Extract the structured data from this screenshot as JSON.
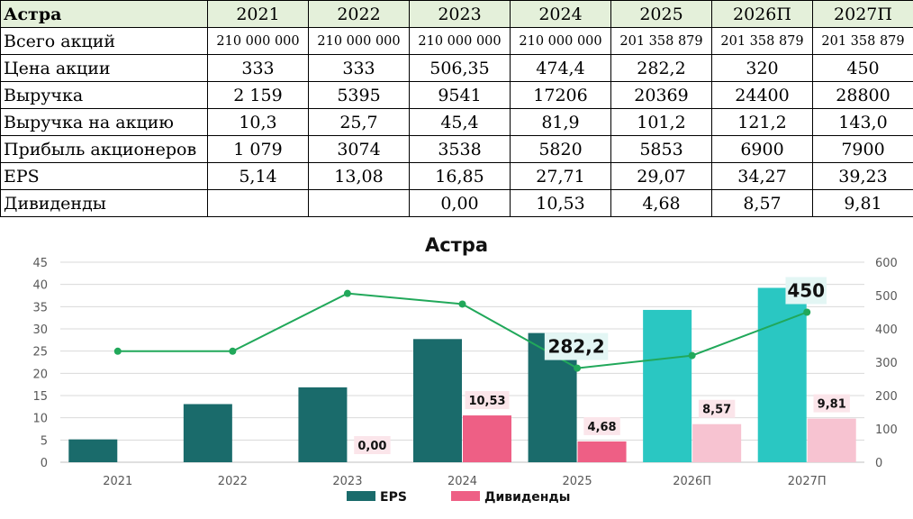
{
  "table": {
    "corner": "Астра",
    "years": [
      "2021",
      "2022",
      "2023",
      "2024",
      "2025",
      "2026П",
      "2027П"
    ],
    "rows": [
      {
        "label": "Всего акций",
        "small": true,
        "values": [
          "210 000 000",
          "210 000 000",
          "210 000 000",
          "210 000 000",
          "201 358 879",
          "201 358 879",
          "201 358 879"
        ]
      },
      {
        "label": "Цена акции",
        "values": [
          "333",
          "333",
          "506,35",
          "474,4",
          "282,2",
          "320",
          "450"
        ]
      },
      {
        "label": "Выручка",
        "values": [
          "2 159",
          "5395",
          "9541",
          "17206",
          "20369",
          "24400",
          "28800"
        ]
      },
      {
        "label": "Выручка на акцию",
        "values": [
          "10,3",
          "25,7",
          "45,4",
          "81,9",
          "101,2",
          "121,2",
          "143,0"
        ]
      },
      {
        "label": "Прибыль акционеров",
        "values": [
          "1 079",
          "3074",
          "3538",
          "5820",
          "5853",
          "6900",
          "7900"
        ]
      },
      {
        "label": "EPS",
        "values": [
          "5,14",
          "13,08",
          "16,85",
          "27,71",
          "29,07",
          "34,27",
          "39,23"
        ]
      },
      {
        "label": "Дивиденды",
        "values": [
          "",
          "",
          "0,00",
          "10,53",
          "4,68",
          "8,57",
          "9,81"
        ]
      }
    ]
  },
  "chart_data": {
    "type": "bar",
    "title": "Астра",
    "categories": [
      "2021",
      "2022",
      "2023",
      "2024",
      "2025",
      "2026П",
      "2027П"
    ],
    "series": [
      {
        "name": "EPS",
        "kind": "bar",
        "axis": "left",
        "values": [
          5.14,
          13.08,
          16.85,
          27.71,
          29.07,
          34.27,
          39.23
        ],
        "colors": [
          "#1a6b6b",
          "#1a6b6b",
          "#1a6b6b",
          "#1a6b6b",
          "#1a6b6b",
          "#2ac7c2",
          "#2ac7c2"
        ]
      },
      {
        "name": "Дивиденды",
        "kind": "bar",
        "axis": "left",
        "values": [
          null,
          null,
          0,
          10.53,
          4.68,
          8.57,
          9.81
        ],
        "labels": [
          "",
          "",
          "0,00",
          "10,53",
          "4,68",
          "8,57",
          "9,81"
        ],
        "colors": [
          "#ee5f85",
          "#ee5f85",
          "#ee5f85",
          "#ee5f85",
          "#ee5f85",
          "#f7c3d1",
          "#f7c3d1"
        ]
      },
      {
        "kind": "line",
        "axis": "right",
        "values": [
          333,
          333,
          506.35,
          474.4,
          282.2,
          320,
          450
        ],
        "color": "#21a85a",
        "labels": [
          "",
          "",
          "",
          "",
          "282,2",
          "",
          "450"
        ]
      }
    ],
    "y_left": {
      "min": 0,
      "max": 45,
      "step": 5,
      "ticks": [
        "0",
        "5",
        "10",
        "15",
        "20",
        "25",
        "30",
        "35",
        "40",
        "45"
      ]
    },
    "y_right": {
      "min": 0,
      "max": 600,
      "step": 100,
      "ticks": [
        "0",
        "100",
        "200",
        "300",
        "400",
        "500",
        "600"
      ]
    },
    "grid": true,
    "legend": {
      "position": "bottom",
      "items": [
        "EPS",
        "Дивиденды"
      ]
    }
  }
}
